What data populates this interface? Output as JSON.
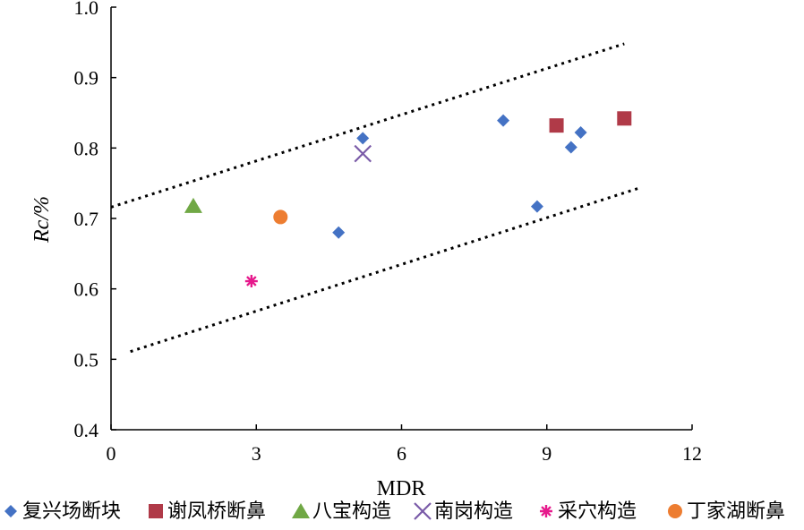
{
  "chart_data": {
    "type": "scatter",
    "title": "",
    "xlabel": "MDR",
    "ylabel": "Rc/%",
    "xlim": [
      0,
      12
    ],
    "ylim": [
      0.4,
      1.0
    ],
    "x_ticks": [
      0,
      3,
      6,
      9,
      12
    ],
    "y_ticks": [
      0.4,
      0.5,
      0.6,
      0.7,
      0.8,
      0.9,
      1.0
    ],
    "x_tick_labels": [
      "0",
      "3",
      "6",
      "9",
      "12"
    ],
    "y_tick_labels": [
      "0.4",
      "0.5",
      "0.6",
      "0.7",
      "0.8",
      "0.9",
      "1.0"
    ],
    "grid": false,
    "legend_position": "bottom",
    "series": [
      {
        "name": "复兴场断块",
        "marker": "diamond",
        "color": "#4472C4",
        "points": [
          {
            "x": 4.7,
            "y": 0.68
          },
          {
            "x": 5.2,
            "y": 0.814
          },
          {
            "x": 8.1,
            "y": 0.839
          },
          {
            "x": 8.8,
            "y": 0.717
          },
          {
            "x": 9.5,
            "y": 0.801
          },
          {
            "x": 9.7,
            "y": 0.822
          }
        ]
      },
      {
        "name": "谢凤桥断鼻",
        "marker": "square",
        "color": "#B03A48",
        "points": [
          {
            "x": 9.2,
            "y": 0.832
          },
          {
            "x": 10.6,
            "y": 0.842
          }
        ]
      },
      {
        "name": "八宝构造",
        "marker": "triangle",
        "color": "#70A845",
        "points": [
          {
            "x": 1.7,
            "y": 0.718
          }
        ]
      },
      {
        "name": "南岗构造",
        "marker": "x",
        "color": "#7A5BA8",
        "points": [
          {
            "x": 5.2,
            "y": 0.792
          }
        ]
      },
      {
        "name": "采穴构造",
        "marker": "asterisk",
        "color": "#E6198C",
        "points": [
          {
            "x": 2.9,
            "y": 0.611
          }
        ]
      },
      {
        "name": "丁家湖断鼻",
        "marker": "circle",
        "color": "#ED7D31",
        "points": [
          {
            "x": 3.5,
            "y": 0.702
          }
        ]
      }
    ],
    "trend_lines": [
      {
        "name": "upper-bound",
        "style": "dotted",
        "color": "#000000",
        "from": {
          "x": 0,
          "y": 0.716
        },
        "to": {
          "x": 10.6,
          "y": 0.948
        }
      },
      {
        "name": "lower-bound",
        "style": "dotted",
        "color": "#000000",
        "from": {
          "x": 0.4,
          "y": 0.511
        },
        "to": {
          "x": 10.9,
          "y": 0.743
        }
      }
    ]
  }
}
